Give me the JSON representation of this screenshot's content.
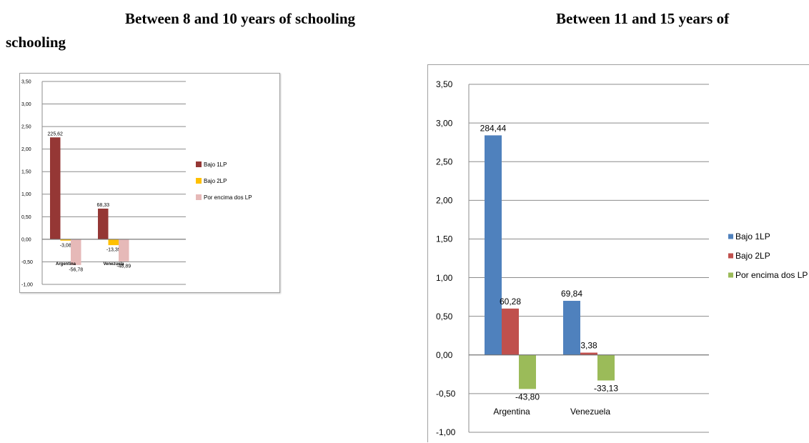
{
  "headings": {
    "left": "Between 8 and 10 years of schooling",
    "right": "Between 11 and 15 years of",
    "right_wrap": "schooling"
  },
  "chart_data": [
    {
      "type": "bar",
      "categories": [
        "Argentina",
        "Venezuela"
      ],
      "series": [
        {
          "name": "Bajo 1LP",
          "values": [
            2.26,
            0.68
          ],
          "labels": [
            "225,62",
            "68,33"
          ],
          "color": "#953735"
        },
        {
          "name": "Bajo 2LP",
          "values": [
            -0.03,
            -0.13
          ],
          "labels": [
            "-3,08",
            "-13,39"
          ],
          "color": "#ffc000"
        },
        {
          "name": "Por encima dos LP",
          "values": [
            -0.57,
            -0.49
          ],
          "labels": [
            "-56,78",
            "-48,89"
          ],
          "color": "#e6b9b8"
        }
      ],
      "ylim": [
        -1.0,
        3.5
      ],
      "yticks": [
        "3,50",
        "3,00",
        "2,50",
        "2,00",
        "1,50",
        "1,00",
        "0,50",
        "0,00",
        "-0,50",
        "-1,00"
      ],
      "grid": true,
      "legend": "right"
    },
    {
      "type": "bar",
      "categories": [
        "Argentina",
        "Venezuela"
      ],
      "series": [
        {
          "name": "Bajo 1LP",
          "values": [
            2.84,
            0.7
          ],
          "labels": [
            "284,44",
            "69,84"
          ],
          "color": "#4f81bd"
        },
        {
          "name": "Bajo 2LP",
          "values": [
            0.6,
            0.03
          ],
          "labels": [
            "60,28",
            "3,38"
          ],
          "color": "#c0504d"
        },
        {
          "name": "Por encima dos LP",
          "values": [
            -0.44,
            -0.33
          ],
          "labels": [
            "-43,80",
            "-33,13"
          ],
          "color": "#9bbb59"
        }
      ],
      "ylim": [
        -1.0,
        3.5
      ],
      "yticks": [
        "3,50",
        "3,00",
        "2,50",
        "2,00",
        "1,50",
        "1,00",
        "0,50",
        "0,00",
        "-0,50",
        "-1,00"
      ],
      "grid": true,
      "legend": "right"
    }
  ]
}
